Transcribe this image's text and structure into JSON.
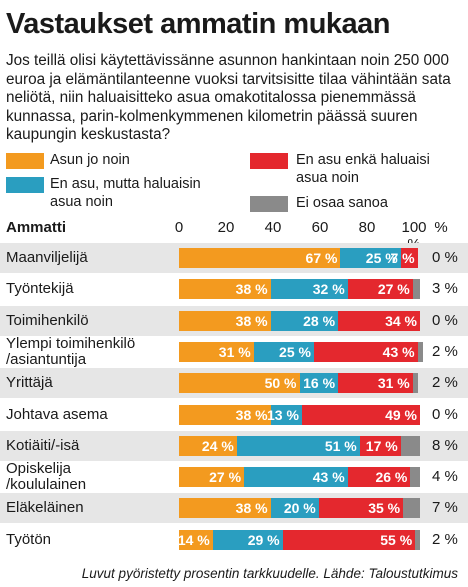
{
  "title": "Vastaukset ammatin mukaan",
  "question": "Jos teillä olisi käytettävissänne asunnon hankintaan noin 250 000 euroa ja elämäntilanteenne vuoksi tarvitsisitte tilaa vähintään sata neliötä, niin haluaisitteko asua omakotitalossa pienemmässä kunnassa, parin-kolmenkymmenen kilometrin päässä suuren kaupungin keskustasta?",
  "source": "Luvut pyöristetty prosentin tarkkuudelle. Lähde: Taloustutkimus",
  "colors": {
    "orange": "#f39a1f",
    "blue": "#2a9ec0",
    "red": "#e4282e",
    "gray": "#8a8a8a",
    "row_bg": "#e6e6e6"
  },
  "legend": [
    {
      "label": "Asun jo noin",
      "color": "#f39a1f"
    },
    {
      "label": "En asu, mutta haluaisin asua noin",
      "color": "#2a9ec0"
    },
    {
      "label": "En asu enkä haluaisi asua noin",
      "color": "#e4282e"
    },
    {
      "label": "Ei osaa sanoa",
      "color": "#8a8a8a"
    }
  ],
  "chart_data": {
    "type": "bar",
    "stacked": true,
    "orientation": "horizontal",
    "header_label": "Ammatti",
    "ticks": [
      "0",
      "20",
      "40",
      "60",
      "80",
      "100 %"
    ],
    "eos_header": "%",
    "xlim": [
      0,
      100
    ],
    "categories": [
      "Maanviljelijä",
      "Työntekijä",
      "Toimihenkilö",
      "Ylempi toimihenkilö /asiantuntija",
      "Yrittäjä",
      "Johtava asema",
      "Kotiäiti/-isä",
      "Opiskelija /koululainen",
      "Eläkeläinen",
      "Työtön"
    ],
    "series": [
      {
        "name": "Asun jo noin",
        "values": [
          67,
          38,
          38,
          31,
          50,
          38,
          24,
          27,
          38,
          14
        ]
      },
      {
        "name": "En asu, mutta haluaisin asua noin",
        "values": [
          25,
          32,
          28,
          25,
          16,
          13,
          51,
          43,
          20,
          29
        ]
      },
      {
        "name": "En asu enkä haluaisi asua noin",
        "values": [
          7,
          27,
          34,
          43,
          31,
          49,
          17,
          26,
          35,
          55
        ]
      },
      {
        "name": "Ei osaa sanoa",
        "values": [
          0,
          3,
          0,
          2,
          2,
          0,
          8,
          4,
          7,
          2
        ]
      }
    ],
    "value_labels": [
      [
        "67 %",
        "25 %",
        "7 %",
        "0 %"
      ],
      [
        "38 %",
        "32 %",
        "27 %",
        "3 %"
      ],
      [
        "38 %",
        "28 %",
        "34 %",
        "0 %"
      ],
      [
        "31 %",
        "25 %",
        "43 %",
        "2 %"
      ],
      [
        "50 %",
        "16 %",
        "31 %",
        "2 %"
      ],
      [
        "38 %",
        "13 %",
        "49 %",
        "0 %"
      ],
      [
        "24 %",
        "51 %",
        "17 %",
        "8 %"
      ],
      [
        "27 %",
        "43 %",
        "26 %",
        "4 %"
      ],
      [
        "38 %",
        "20 %",
        "35 %",
        "7 %"
      ],
      [
        "14 %",
        "29 %",
        "55 %",
        "2 %"
      ]
    ]
  }
}
